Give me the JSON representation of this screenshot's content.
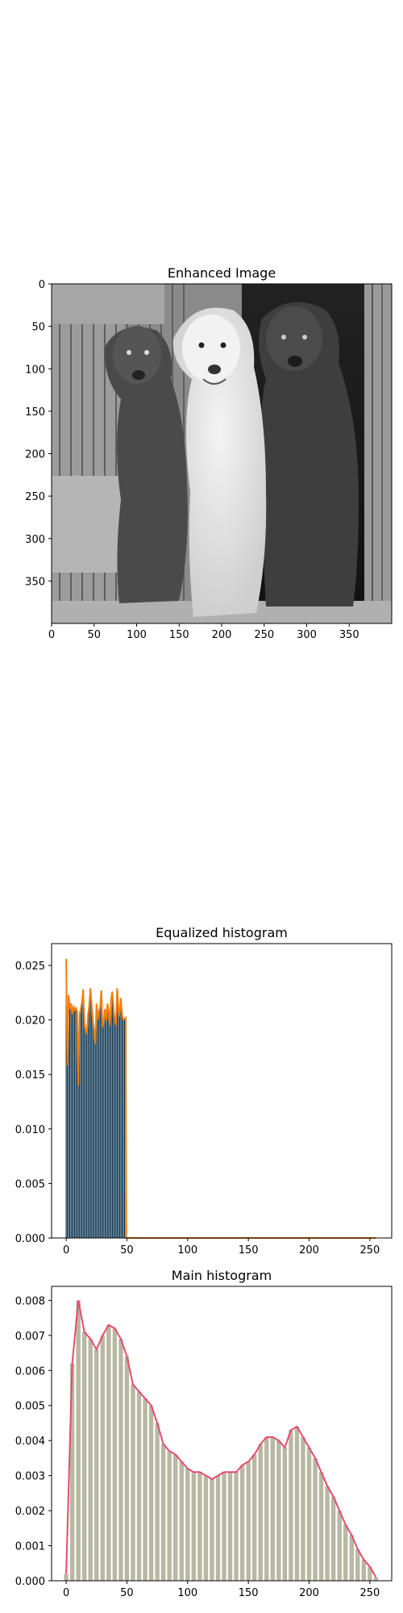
{
  "chart_data": [
    {
      "type": "image",
      "title": "Enhanced Image",
      "xticks": [
        0,
        50,
        100,
        150,
        200,
        250,
        300,
        350
      ],
      "yticks": [
        0,
        50,
        100,
        150,
        200,
        250,
        300,
        350
      ],
      "xlim": [
        0,
        400
      ],
      "ylim": [
        400,
        0
      ],
      "colormap": "gray",
      "subject": "grayscale photo of three labrador dogs sitting in a wooden barn doorway"
    },
    {
      "type": "bar",
      "title": "Equalized histogram",
      "xlim": [
        -12,
        268
      ],
      "ylim": [
        0,
        0.027
      ],
      "xticks": [
        0,
        50,
        100,
        150,
        200,
        250
      ],
      "yticks": [
        "0.000",
        "0.005",
        "0.010",
        "0.015",
        "0.020",
        "0.025"
      ],
      "bar_color": "#012b48",
      "line_color": "#f07f0d",
      "x": [
        0,
        1,
        2,
        3,
        4,
        5,
        6,
        7,
        8,
        9,
        10,
        11,
        12,
        13,
        14,
        15,
        16,
        17,
        18,
        19,
        20,
        21,
        22,
        23,
        24,
        25,
        26,
        27,
        28,
        29,
        30,
        31,
        32,
        33,
        34,
        35,
        36,
        37,
        38,
        39,
        40,
        41,
        42,
        43,
        44,
        45,
        46,
        47,
        48,
        49
      ],
      "values": [
        0.0256,
        0.0158,
        0.0223,
        0.021,
        0.0215,
        0.0205,
        0.0212,
        0.0209,
        0.0211,
        0.0208,
        0.014,
        0.0205,
        0.021,
        0.0216,
        0.0228,
        0.0197,
        0.019,
        0.0188,
        0.0204,
        0.0214,
        0.0229,
        0.0213,
        0.02,
        0.019,
        0.0178,
        0.0215,
        0.02,
        0.0208,
        0.0212,
        0.0227,
        0.0193,
        0.02,
        0.021,
        0.0199,
        0.0215,
        0.0208,
        0.0195,
        0.0219,
        0.0226,
        0.021,
        0.0201,
        0.0195,
        0.0229,
        0.0212,
        0.0203,
        0.022,
        0.0205,
        0.02,
        0.0201,
        0.0202
      ],
      "tail_value": 0
    },
    {
      "type": "bar",
      "title": "Main histogram",
      "xlim": [
        -12,
        268
      ],
      "ylim": [
        0,
        0.0084
      ],
      "xticks": [
        0,
        50,
        100,
        150,
        200,
        250
      ],
      "yticks": [
        "0.000",
        "0.001",
        "0.002",
        "0.003",
        "0.004",
        "0.005",
        "0.006",
        "0.007",
        "0.008"
      ],
      "bar_color": "#b8b8a3",
      "line_color": "#e84a6d",
      "x": [
        0,
        5,
        10,
        15,
        20,
        25,
        30,
        35,
        40,
        45,
        50,
        55,
        60,
        65,
        70,
        75,
        80,
        85,
        90,
        95,
        100,
        105,
        110,
        115,
        120,
        125,
        130,
        135,
        140,
        145,
        150,
        155,
        160,
        165,
        170,
        175,
        180,
        185,
        190,
        195,
        200,
        205,
        210,
        215,
        220,
        225,
        230,
        235,
        240,
        245,
        250,
        255
      ],
      "values": [
        0.0002,
        0.0062,
        0.008,
        0.0071,
        0.0069,
        0.0066,
        0.007,
        0.0073,
        0.0072,
        0.0069,
        0.0064,
        0.0056,
        0.0054,
        0.0052,
        0.005,
        0.0045,
        0.0039,
        0.0037,
        0.0036,
        0.0034,
        0.0032,
        0.0031,
        0.0031,
        0.003,
        0.0029,
        0.003,
        0.0031,
        0.0031,
        0.0031,
        0.0033,
        0.0034,
        0.0036,
        0.0039,
        0.0041,
        0.0041,
        0.004,
        0.0038,
        0.0043,
        0.0044,
        0.0041,
        0.0038,
        0.0035,
        0.0031,
        0.0027,
        0.0024,
        0.002,
        0.0016,
        0.0013,
        0.0009,
        0.0006,
        0.0004,
        0.0001
      ]
    }
  ]
}
